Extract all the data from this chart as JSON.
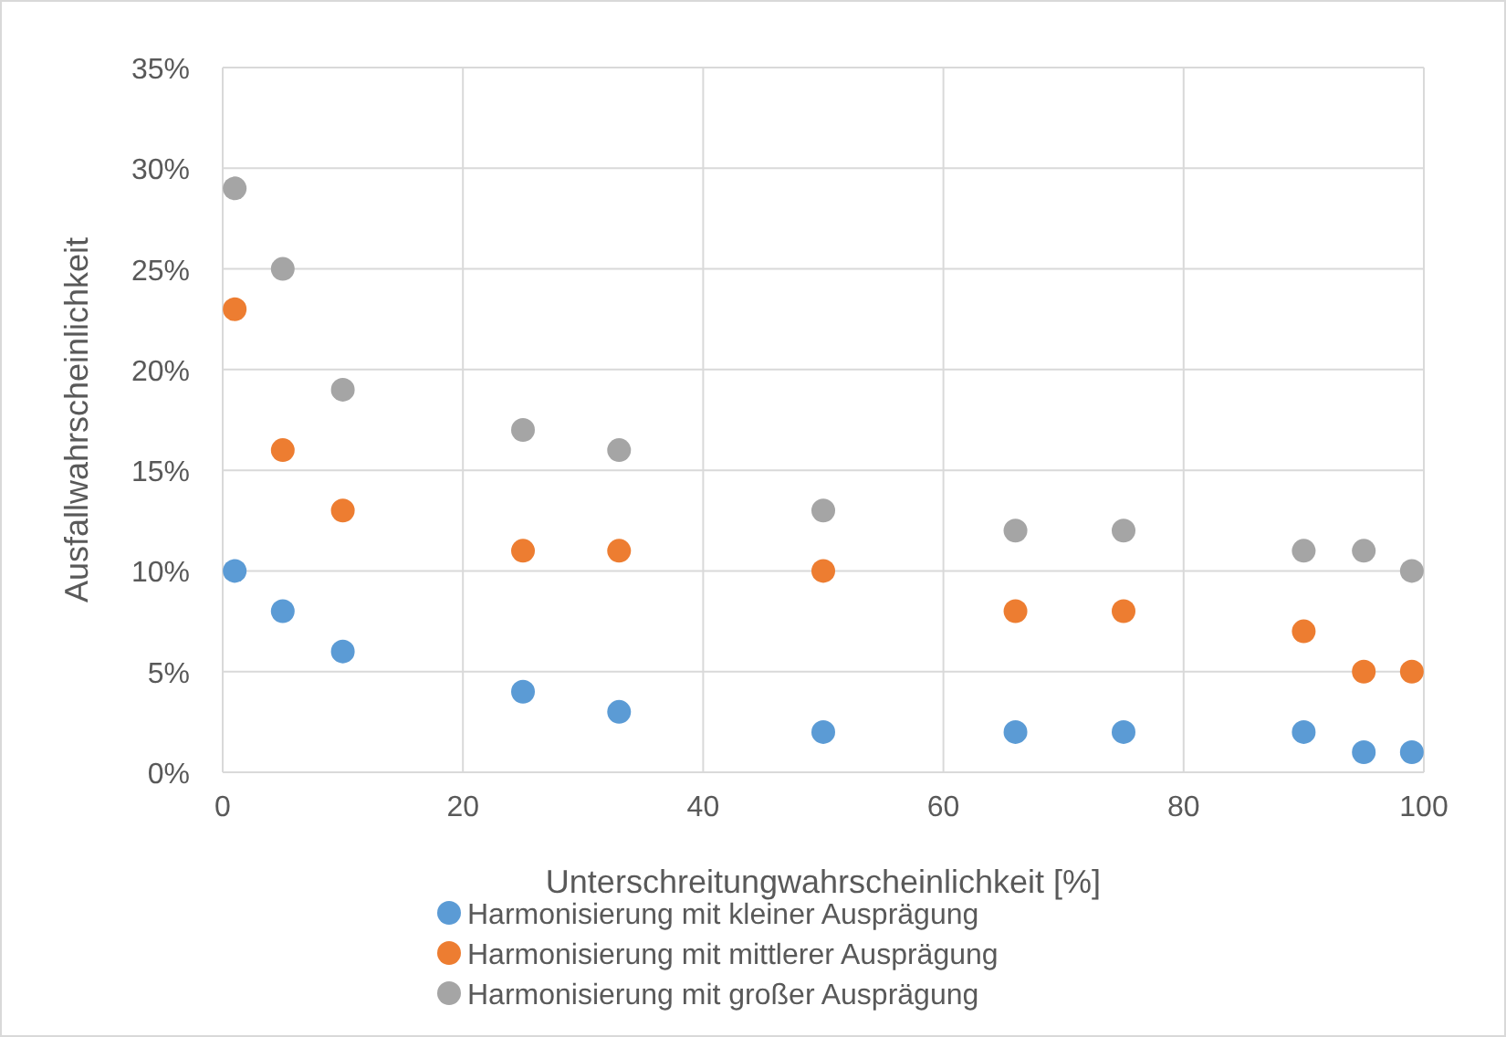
{
  "chart_data": {
    "type": "scatter",
    "xlabel": "Unterschreitungwahrscheinlichkeit [%]",
    "ylabel": "Ausfallwahrscheinlichkeit",
    "x": [
      1,
      5,
      10,
      25,
      33,
      50,
      66,
      75,
      90,
      95,
      99
    ],
    "series": [
      {
        "name": "Harmonisierung mit kleiner Ausprägung",
        "color": "#5b9bd5",
        "values": [
          10,
          8,
          6,
          4,
          3,
          2,
          2,
          2,
          2,
          1,
          1
        ]
      },
      {
        "name": "Harmonisierung mit mittlerer Ausprägung",
        "color": "#ed7d31",
        "values": [
          23,
          16,
          13,
          11,
          11,
          10,
          8,
          8,
          7,
          5,
          5
        ]
      },
      {
        "name": "Harmonisierung mit großer Ausprägung",
        "color": "#a5a5a5",
        "values": [
          29,
          25,
          19,
          17,
          16,
          13,
          12,
          12,
          11,
          11,
          10
        ]
      }
    ],
    "xlim": [
      0,
      100
    ],
    "xticks": [
      0,
      20,
      40,
      60,
      80,
      100
    ],
    "ylim": [
      0,
      35
    ],
    "yticks": [
      {
        "value": 0,
        "label": "0%"
      },
      {
        "value": 5,
        "label": "5%"
      },
      {
        "value": 10,
        "label": "10%"
      },
      {
        "value": 15,
        "label": "15%"
      },
      {
        "value": 20,
        "label": "20%"
      },
      {
        "value": 25,
        "label": "25%"
      },
      {
        "value": 30,
        "label": "30%"
      },
      {
        "value": 35,
        "label": "35%"
      }
    ],
    "grid": true,
    "legend": "bottom",
    "marker": "circle"
  }
}
